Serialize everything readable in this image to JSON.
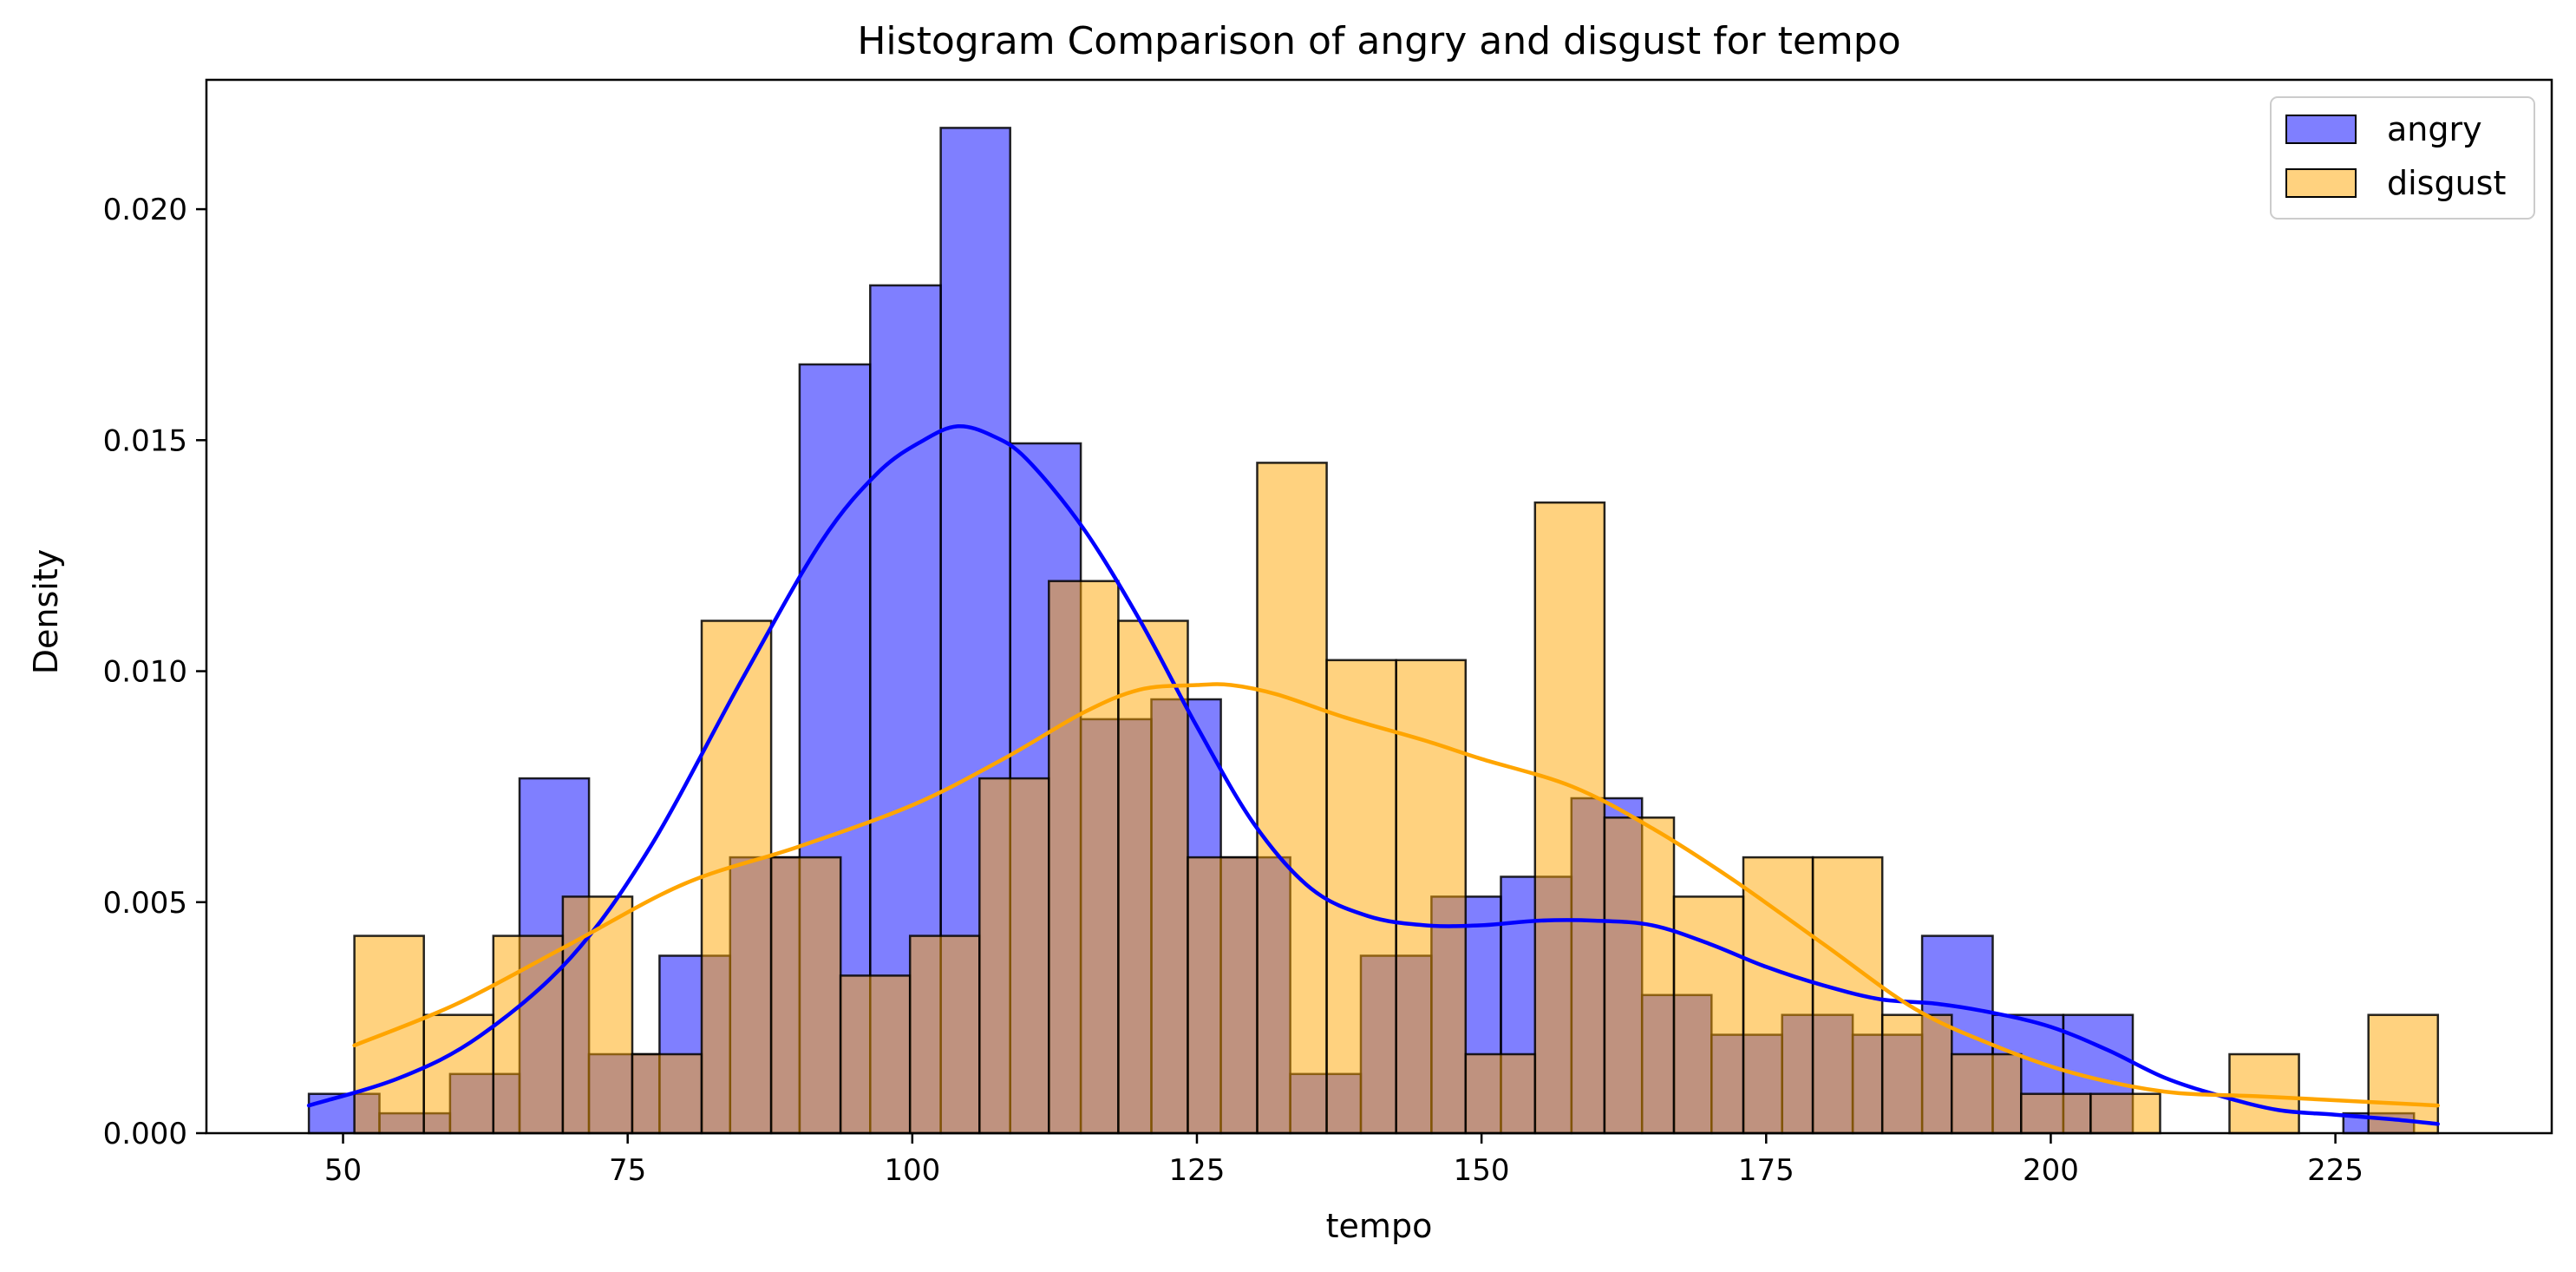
{
  "chart_data": {
    "type": "histogram",
    "title": "Histogram Comparison of angry and disgust for tempo",
    "xlabel": "tempo",
    "ylabel": "Density",
    "xlim": [
      38,
      244
    ],
    "ylim": [
      0,
      0.0228
    ],
    "xticks": [
      50,
      75,
      100,
      125,
      150,
      175,
      200,
      225
    ],
    "yticks": [
      0.0,
      0.005,
      0.01,
      0.015,
      0.02
    ],
    "ytick_labels": [
      "0.000",
      "0.005",
      "0.010",
      "0.015",
      "0.020"
    ],
    "grid": false,
    "legend_position": "top-right",
    "series": [
      {
        "name": "angry",
        "color": "#0000ff",
        "bar_fill": "#8080ff",
        "bins": [
          {
            "x0": 47.0,
            "x1": 53.2,
            "density": 0.00085
          },
          {
            "x0": 53.2,
            "x1": 59.4,
            "density": 0.00043
          },
          {
            "x0": 59.4,
            "x1": 65.5,
            "density": 0.00128
          },
          {
            "x0": 65.5,
            "x1": 71.6,
            "density": 0.00768
          },
          {
            "x0": 71.6,
            "x1": 77.8,
            "density": 0.00171
          },
          {
            "x0": 77.8,
            "x1": 84.0,
            "density": 0.00384
          },
          {
            "x0": 84.0,
            "x1": 90.1,
            "density": 0.00597
          },
          {
            "x0": 90.1,
            "x1": 96.3,
            "density": 0.01664
          },
          {
            "x0": 96.3,
            "x1": 102.5,
            "density": 0.01835
          },
          {
            "x0": 102.5,
            "x1": 108.6,
            "density": 0.02176
          },
          {
            "x0": 108.6,
            "x1": 114.8,
            "density": 0.01493
          },
          {
            "x0": 114.8,
            "x1": 121.0,
            "density": 0.00896
          },
          {
            "x0": 121.0,
            "x1": 127.1,
            "density": 0.00939
          },
          {
            "x0": 127.1,
            "x1": 133.2,
            "density": 0.00597
          },
          {
            "x0": 133.2,
            "x1": 139.4,
            "density": 0.00128
          },
          {
            "x0": 139.4,
            "x1": 145.6,
            "density": 0.00384
          },
          {
            "x0": 145.6,
            "x1": 151.7,
            "density": 0.00512
          },
          {
            "x0": 151.7,
            "x1": 157.9,
            "density": 0.00555
          },
          {
            "x0": 157.9,
            "x1": 164.1,
            "density": 0.00725
          },
          {
            "x0": 164.1,
            "x1": 170.2,
            "density": 0.00299
          },
          {
            "x0": 170.2,
            "x1": 176.4,
            "density": 0.00213
          },
          {
            "x0": 176.4,
            "x1": 182.6,
            "density": 0.00256
          },
          {
            "x0": 182.6,
            "x1": 188.7,
            "density": 0.00213
          },
          {
            "x0": 188.7,
            "x1": 194.9,
            "density": 0.00427
          },
          {
            "x0": 194.9,
            "x1": 201.1,
            "density": 0.00256
          },
          {
            "x0": 201.1,
            "x1": 207.2,
            "density": 0.00256
          },
          {
            "x0": 207.2,
            "x1": 213.4,
            "density": 0.0
          },
          {
            "x0": 213.4,
            "x1": 219.6,
            "density": 0.0
          },
          {
            "x0": 219.6,
            "x1": 225.7,
            "density": 0.0
          },
          {
            "x0": 225.7,
            "x1": 231.9,
            "density": 0.00043
          },
          {
            "x0": 231.9,
            "x1": 234.0,
            "density": 0.0
          }
        ],
        "kde": {
          "x": [
            47,
            55,
            62,
            70,
            77,
            85,
            92,
            97,
            101,
            104,
            107,
            110,
            115,
            120,
            125,
            130,
            135,
            140,
            145,
            150,
            155,
            160,
            165,
            170,
            175,
            180,
            185,
            190,
            195,
            200,
            205,
            210,
            215,
            220,
            225,
            230,
            234
          ],
          "y": [
            0.0006,
            0.0012,
            0.0021,
            0.0038,
            0.0062,
            0.0098,
            0.0128,
            0.0143,
            0.015,
            0.0153,
            0.0151,
            0.0146,
            0.0131,
            0.0111,
            0.0088,
            0.0067,
            0.0053,
            0.0047,
            0.0045,
            0.0045,
            0.0046,
            0.0046,
            0.0045,
            0.0041,
            0.0036,
            0.0032,
            0.0029,
            0.0028,
            0.0026,
            0.0023,
            0.0018,
            0.0012,
            0.0008,
            0.0005,
            0.0004,
            0.0003,
            0.0002
          ]
        }
      },
      {
        "name": "disgust",
        "color": "#ffa500",
        "bar_fill": "#ffd27f",
        "bins": [
          {
            "x0": 51.0,
            "x1": 57.1,
            "density": 0.00427
          },
          {
            "x0": 57.1,
            "x1": 63.2,
            "density": 0.00256
          },
          {
            "x0": 63.2,
            "x1": 69.3,
            "density": 0.00427
          },
          {
            "x0": 69.3,
            "x1": 75.4,
            "density": 0.00512
          },
          {
            "x0": 75.4,
            "x1": 81.5,
            "density": 0.00171
          },
          {
            "x0": 81.5,
            "x1": 87.6,
            "density": 0.01109
          },
          {
            "x0": 87.6,
            "x1": 93.7,
            "density": 0.00597
          },
          {
            "x0": 93.7,
            "x1": 99.8,
            "density": 0.00341
          },
          {
            "x0": 99.8,
            "x1": 105.9,
            "density": 0.00427
          },
          {
            "x0": 105.9,
            "x1": 112.0,
            "density": 0.00768
          },
          {
            "x0": 112.0,
            "x1": 118.1,
            "density": 0.01195
          },
          {
            "x0": 118.1,
            "x1": 124.2,
            "density": 0.01109
          },
          {
            "x0": 124.2,
            "x1": 130.3,
            "density": 0.00597
          },
          {
            "x0": 130.3,
            "x1": 136.4,
            "density": 0.01451
          },
          {
            "x0": 136.4,
            "x1": 142.5,
            "density": 0.01024
          },
          {
            "x0": 142.5,
            "x1": 148.6,
            "density": 0.01024
          },
          {
            "x0": 148.6,
            "x1": 154.7,
            "density": 0.00171
          },
          {
            "x0": 154.7,
            "x1": 160.8,
            "density": 0.01365
          },
          {
            "x0": 160.8,
            "x1": 166.9,
            "density": 0.00683
          },
          {
            "x0": 166.9,
            "x1": 173.0,
            "density": 0.00512
          },
          {
            "x0": 173.0,
            "x1": 179.1,
            "density": 0.00597
          },
          {
            "x0": 179.1,
            "x1": 185.2,
            "density": 0.00597
          },
          {
            "x0": 185.2,
            "x1": 191.3,
            "density": 0.00256
          },
          {
            "x0": 191.3,
            "x1": 197.4,
            "density": 0.00171
          },
          {
            "x0": 197.4,
            "x1": 203.5,
            "density": 0.00085
          },
          {
            "x0": 203.5,
            "x1": 209.6,
            "density": 0.00085
          },
          {
            "x0": 209.6,
            "x1": 215.7,
            "density": 0.0
          },
          {
            "x0": 215.7,
            "x1": 221.8,
            "density": 0.00171
          },
          {
            "x0": 221.8,
            "x1": 227.9,
            "density": 0.0
          },
          {
            "x0": 227.9,
            "x1": 234.0,
            "density": 0.00256
          }
        ],
        "kde": {
          "x": [
            51,
            60,
            70,
            80,
            90,
            100,
            108,
            115,
            120,
            125,
            128,
            132,
            138,
            145,
            150,
            158,
            165,
            172,
            180,
            188,
            195,
            202,
            210,
            218,
            226,
            234
          ],
          "y": [
            0.0019,
            0.0028,
            0.0041,
            0.0054,
            0.0062,
            0.0071,
            0.0081,
            0.0091,
            0.0096,
            0.0097,
            0.0097,
            0.0095,
            0.009,
            0.0085,
            0.0081,
            0.0075,
            0.0066,
            0.0055,
            0.0041,
            0.0027,
            0.0019,
            0.0013,
            0.0009,
            0.0008,
            0.0007,
            0.0006
          ]
        }
      }
    ]
  }
}
